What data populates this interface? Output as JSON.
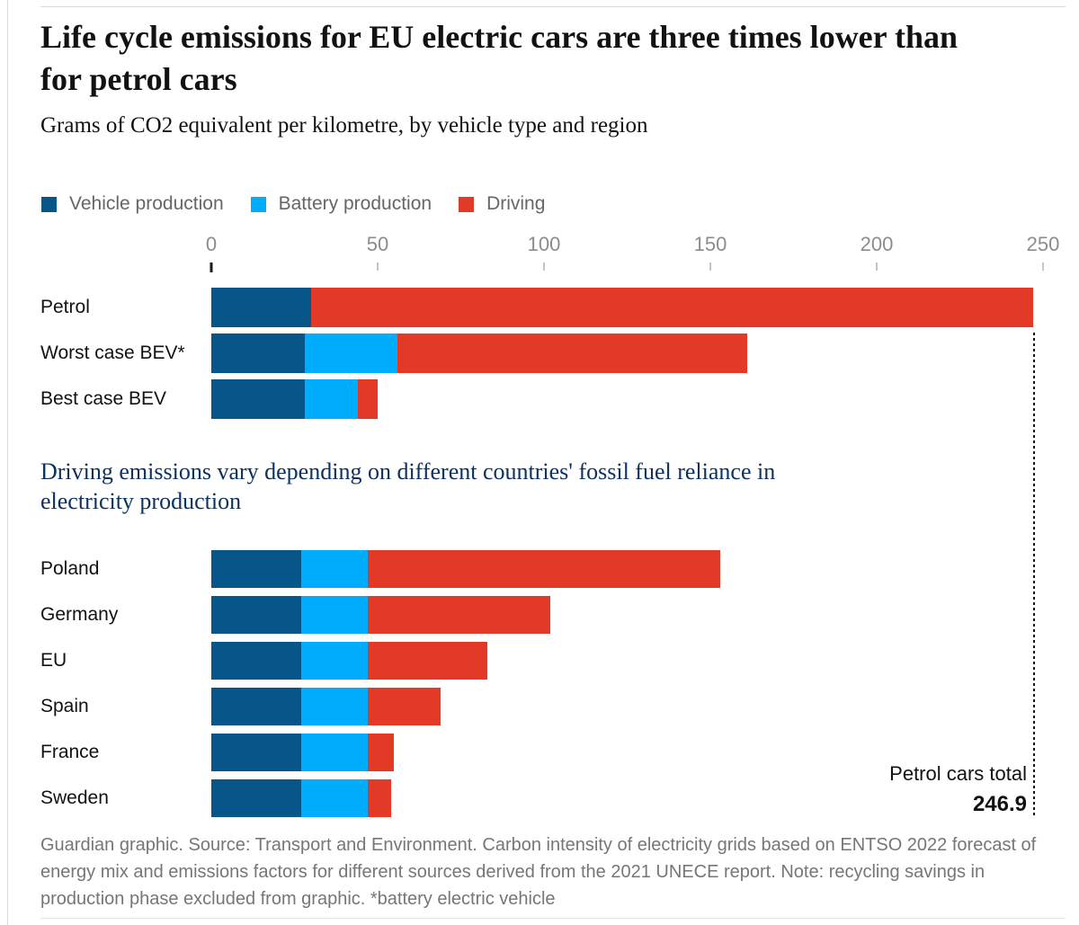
{
  "page": {
    "title": "Life cycle emissions for EU electric cars are three times lower than for petrol cars",
    "subtitle": "Grams of CO2 equivalent per kilometre, by vehicle type and region",
    "section_heading": "Driving emissions vary depending on different countries' fossil fuel reliance in electricity production",
    "annotation": {
      "label": "Petrol cars total",
      "value": "246.9"
    },
    "footnote": "Guardian graphic. Source: Transport and Environment. Carbon intensity of electricity grids based on ENTSO 2022 forecast of energy mix and emissions factors for different sources derived from the 2021 UNECE report. Note: recycling savings in production phase excluded from graphic. *battery electric vehicle"
  },
  "colors": {
    "vehicle_production": "#075689",
    "battery_production": "#00adfd",
    "driving": "#e23a27",
    "navy_heading": "#0c3261",
    "gray_text": "#767676",
    "axis_text": "#8c8c8c",
    "rule": "#dcdcdc"
  },
  "chart_data": {
    "type": "bar",
    "orientation": "horizontal",
    "stacked": true,
    "title": "Life cycle emissions for EU electric cars are three times lower than for petrol cars",
    "xlabel": "Grams of CO2 equivalent per kilometre",
    "xlim": [
      0,
      250
    ],
    "x_ticks": [
      0,
      50,
      100,
      150,
      200,
      250
    ],
    "grid": false,
    "legend_position": "top",
    "legend": [
      {
        "label": "Vehicle production",
        "color": "#075689"
      },
      {
        "label": "Battery production",
        "color": "#00adfd"
      },
      {
        "label": "Driving",
        "color": "#e23a27"
      }
    ],
    "series_keys": [
      "Vehicle production",
      "Battery production",
      "Driving"
    ],
    "groups": [
      {
        "name": "by vehicle type",
        "rows": [
          {
            "label": "Petrol",
            "values": [
              30,
              0,
              216.9
            ],
            "total": 246.9
          },
          {
            "label": "Worst case BEV*",
            "values": [
              28,
              28,
              105
            ],
            "total": 161
          },
          {
            "label": "Best case BEV",
            "values": [
              28,
              16,
              6
            ],
            "total": 50
          }
        ]
      },
      {
        "name": "by region",
        "rows": [
          {
            "label": "Poland",
            "values": [
              27,
              20,
              106
            ],
            "total": 153
          },
          {
            "label": "Germany",
            "values": [
              27,
              20,
              55
            ],
            "total": 102
          },
          {
            "label": "EU",
            "values": [
              27,
              20,
              36
            ],
            "total": 83
          },
          {
            "label": "Spain",
            "values": [
              27,
              20,
              22
            ],
            "total": 69
          },
          {
            "label": "France",
            "values": [
              27,
              20,
              8
            ],
            "total": 55
          },
          {
            "label": "Sweden",
            "values": [
              27,
              20,
              7
            ],
            "total": 54
          }
        ]
      }
    ],
    "reference_line": {
      "value": 246.9,
      "label": "Petrol cars total",
      "display": "246.9"
    }
  }
}
